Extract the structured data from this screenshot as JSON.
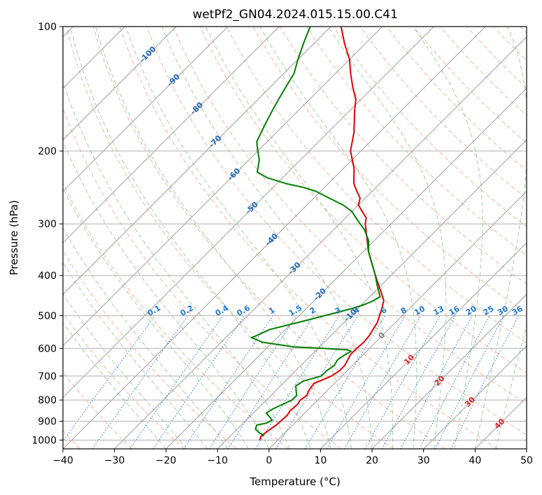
{
  "chart_data": {
    "type": "line",
    "title": "wetPf2_GN04.2024.015.15.00.C41",
    "xlabel": "Temperature (°C)",
    "ylabel": "Pressure (hPa)",
    "xlim": [
      -40,
      50
    ],
    "ylim": [
      1050,
      100
    ],
    "y_scale": "log",
    "grid": true,
    "x_ticks": [
      "−40",
      "−30",
      "−20",
      "−10",
      "0",
      "10",
      "20",
      "30",
      "40",
      "50"
    ],
    "y_ticks": [
      "100",
      "200",
      "300",
      "400",
      "500",
      "600",
      "700",
      "800",
      "900",
      "1000"
    ],
    "skew": "45° skew-T",
    "colors": {
      "temperature": "#e00000",
      "dewpoint": "#007f00",
      "dry_adiabat": "#f4a582",
      "moist_adiabat": "#98c898",
      "mixing_ratio": "#1f78d4",
      "isotherm": "#9e9e9e",
      "grid": "#b0b0b0"
    },
    "series": [
      {
        "key": "temperature",
        "points": [
          [
            1000,
            -3.5
          ],
          [
            980,
            -4.0
          ],
          [
            950,
            -3.7
          ],
          [
            920,
            -3.2
          ],
          [
            900,
            -3.1
          ],
          [
            870,
            -3.0
          ],
          [
            850,
            -3.3
          ],
          [
            820,
            -3.1
          ],
          [
            800,
            -3.4
          ],
          [
            780,
            -3.0
          ],
          [
            760,
            -3.6
          ],
          [
            730,
            -4.0
          ],
          [
            700,
            -2.0
          ],
          [
            680,
            -1.5
          ],
          [
            660,
            -1.5
          ],
          [
            640,
            -2.0
          ],
          [
            620,
            -2.5
          ],
          [
            600,
            -2.5
          ],
          [
            580,
            -2.3
          ],
          [
            560,
            -2.5
          ],
          [
            540,
            -3.0
          ],
          [
            520,
            -3.5
          ],
          [
            500,
            -4.4
          ],
          [
            480,
            -5.4
          ],
          [
            460,
            -6.5
          ],
          [
            450,
            -7.5
          ],
          [
            400,
            -13.0
          ],
          [
            350,
            -19.0
          ],
          [
            300,
            -25.0
          ],
          [
            290,
            -26.0
          ],
          [
            280,
            -28.0
          ],
          [
            270,
            -30.0
          ],
          [
            260,
            -31.0
          ],
          [
            250,
            -33.0
          ],
          [
            240,
            -35.0
          ],
          [
            220,
            -38.0
          ],
          [
            200,
            -42.0
          ],
          [
            180,
            -45.0
          ],
          [
            160,
            -49.0
          ],
          [
            150,
            -51.0
          ],
          [
            140,
            -54.0
          ],
          [
            130,
            -57.0
          ],
          [
            120,
            -60.0
          ],
          [
            110,
            -64.0
          ],
          [
            100,
            -68.0
          ]
        ]
      },
      {
        "key": "dewpoint",
        "points": [
          [
            975,
            -3.5
          ],
          [
            960,
            -5.0
          ],
          [
            940,
            -6.5
          ],
          [
            920,
            -7.0
          ],
          [
            910,
            -5.5
          ],
          [
            895,
            -5.0
          ],
          [
            880,
            -6.0
          ],
          [
            860,
            -7.5
          ],
          [
            840,
            -7.0
          ],
          [
            820,
            -6.0
          ],
          [
            800,
            -5.0
          ],
          [
            780,
            -5.0
          ],
          [
            760,
            -6.0
          ],
          [
            740,
            -7.0
          ],
          [
            720,
            -6.5
          ],
          [
            700,
            -4.0
          ],
          [
            680,
            -4.0
          ],
          [
            660,
            -3.5
          ],
          [
            640,
            -4.0
          ],
          [
            620,
            -3.5
          ],
          [
            610,
            -3.0
          ],
          [
            605,
            -4.0
          ],
          [
            600,
            -9.0
          ],
          [
            595,
            -15.0
          ],
          [
            580,
            -22.0
          ],
          [
            565,
            -25.0
          ],
          [
            560,
            -24.5
          ],
          [
            540,
            -23.0
          ],
          [
            520,
            -19.0
          ],
          [
            500,
            -15.0
          ],
          [
            480,
            -11.0
          ],
          [
            470,
            -9.5
          ],
          [
            460,
            -8.5
          ],
          [
            450,
            -8.0
          ],
          [
            420,
            -11.0
          ],
          [
            400,
            -13.0
          ],
          [
            370,
            -16.5
          ],
          [
            350,
            -19.0
          ],
          [
            330,
            -21.0
          ],
          [
            310,
            -24.0
          ],
          [
            300,
            -26.0
          ],
          [
            290,
            -28.0
          ],
          [
            280,
            -30.0
          ],
          [
            270,
            -33.0
          ],
          [
            260,
            -37.0
          ],
          [
            250,
            -41.0
          ],
          [
            245,
            -44.0
          ],
          [
            240,
            -48.0
          ],
          [
            232,
            -53.0
          ],
          [
            225,
            -56.0
          ],
          [
            210,
            -58.0
          ],
          [
            200,
            -60.0
          ],
          [
            190,
            -62.0
          ],
          [
            180,
            -63.0
          ],
          [
            170,
            -64.0
          ],
          [
            160,
            -65.0
          ],
          [
            150,
            -66.0
          ],
          [
            140,
            -67.0
          ],
          [
            130,
            -68.0
          ],
          [
            120,
            -70.0
          ],
          [
            110,
            -72.0
          ],
          [
            100,
            -74.0
          ]
        ]
      }
    ],
    "isotherm_labels": [
      {
        "text": "-100",
        "temp": -100,
        "p": 117,
        "color": "#1f66b3"
      },
      {
        "text": "-90",
        "temp": -90,
        "p": 135,
        "color": "#1f66b3"
      },
      {
        "text": "-80",
        "temp": -80,
        "p": 158,
        "color": "#1f66b3"
      },
      {
        "text": "-70",
        "temp": -70,
        "p": 190,
        "color": "#1f66b3"
      },
      {
        "text": "-60",
        "temp": -60,
        "p": 228,
        "color": "#1f66b3"
      },
      {
        "text": "-50",
        "temp": -50,
        "p": 275,
        "color": "#1f66b3"
      },
      {
        "text": "-40",
        "temp": -40,
        "p": 328,
        "color": "#1f66b3"
      },
      {
        "text": "-30",
        "temp": -30,
        "p": 385,
        "color": "#1f66b3"
      },
      {
        "text": "-20",
        "temp": -20,
        "p": 445,
        "color": "#1f66b3"
      },
      {
        "text": "-10",
        "temp": -10,
        "p": 500,
        "color": "#1f66b3"
      },
      {
        "text": "0",
        "temp": 0,
        "p": 560,
        "color": "#808080"
      },
      {
        "text": "10",
        "temp": 10,
        "p": 640,
        "color": "#d62728"
      },
      {
        "text": "20",
        "temp": 20,
        "p": 720,
        "color": "#d62728"
      },
      {
        "text": "30",
        "temp": 30,
        "p": 810,
        "color": "#d62728"
      },
      {
        "text": "40",
        "temp": 40,
        "p": 915,
        "color": "#d62728"
      }
    ],
    "mixing_ratio_labels": [
      "0.1",
      "0.2",
      "0.4",
      "0.6",
      "1",
      "1.5",
      "2",
      "3",
      "4",
      "6",
      "8",
      "10",
      "13",
      "16",
      "20",
      "25",
      "30",
      "36"
    ]
  }
}
